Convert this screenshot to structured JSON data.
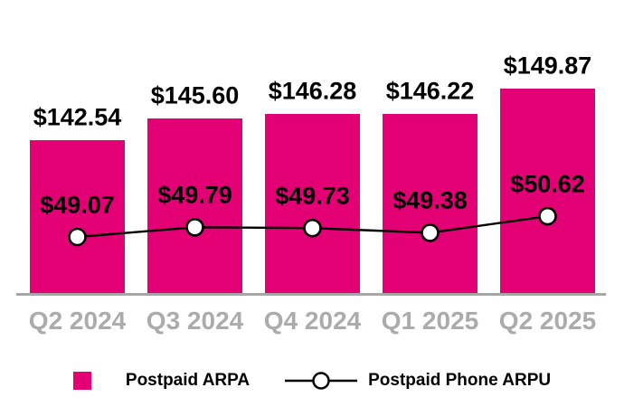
{
  "chart_data": {
    "type": "bar",
    "subtype": "bar-line-combo",
    "title": "",
    "xlabel": "",
    "ylabel": "",
    "grid": false,
    "legend_position": "bottom",
    "categories": [
      "Q2 2024",
      "Q3 2024",
      "Q4 2024",
      "Q1 2025",
      "Q2 2025"
    ],
    "series": [
      {
        "name": "Postpaid ARPA",
        "chart": "bar",
        "color": "#E20074",
        "values": [
          142.54,
          145.6,
          146.28,
          146.22,
          149.87
        ],
        "data_labels": [
          "$142.54",
          "$145.60",
          "$146.28",
          "$146.22",
          "$149.87"
        ]
      },
      {
        "name": "Postpaid Phone ARPU",
        "chart": "line",
        "line_color": "#000000",
        "marker": "circle-white-fill-black-outline",
        "marker_fill": "#FFFFFF",
        "values": [
          49.07,
          49.79,
          49.73,
          49.38,
          50.62
        ],
        "data_labels": [
          "$49.07",
          "$49.79",
          "$49.73",
          "$49.38",
          "$50.62"
        ]
      }
    ],
    "colors": {
      "bar_fill": "#E20074",
      "value_label": "#000000",
      "category_label": "#ABABAB",
      "axis_line": "#A6A6A6",
      "line_stroke": "#000000",
      "marker_fill": "#FFFFFF"
    },
    "bar_axis_hidden": true,
    "bar_axis_implied_min": 120.8,
    "line_overlay_scale_note": "line plotted on its own hidden scale"
  },
  "legend": {
    "items": [
      {
        "label": "Postpaid ARPA",
        "swatch": "magenta-square"
      },
      {
        "label": "Postpaid Phone ARPU",
        "swatch": "black-line-with-open-circle-marker"
      }
    ]
  }
}
